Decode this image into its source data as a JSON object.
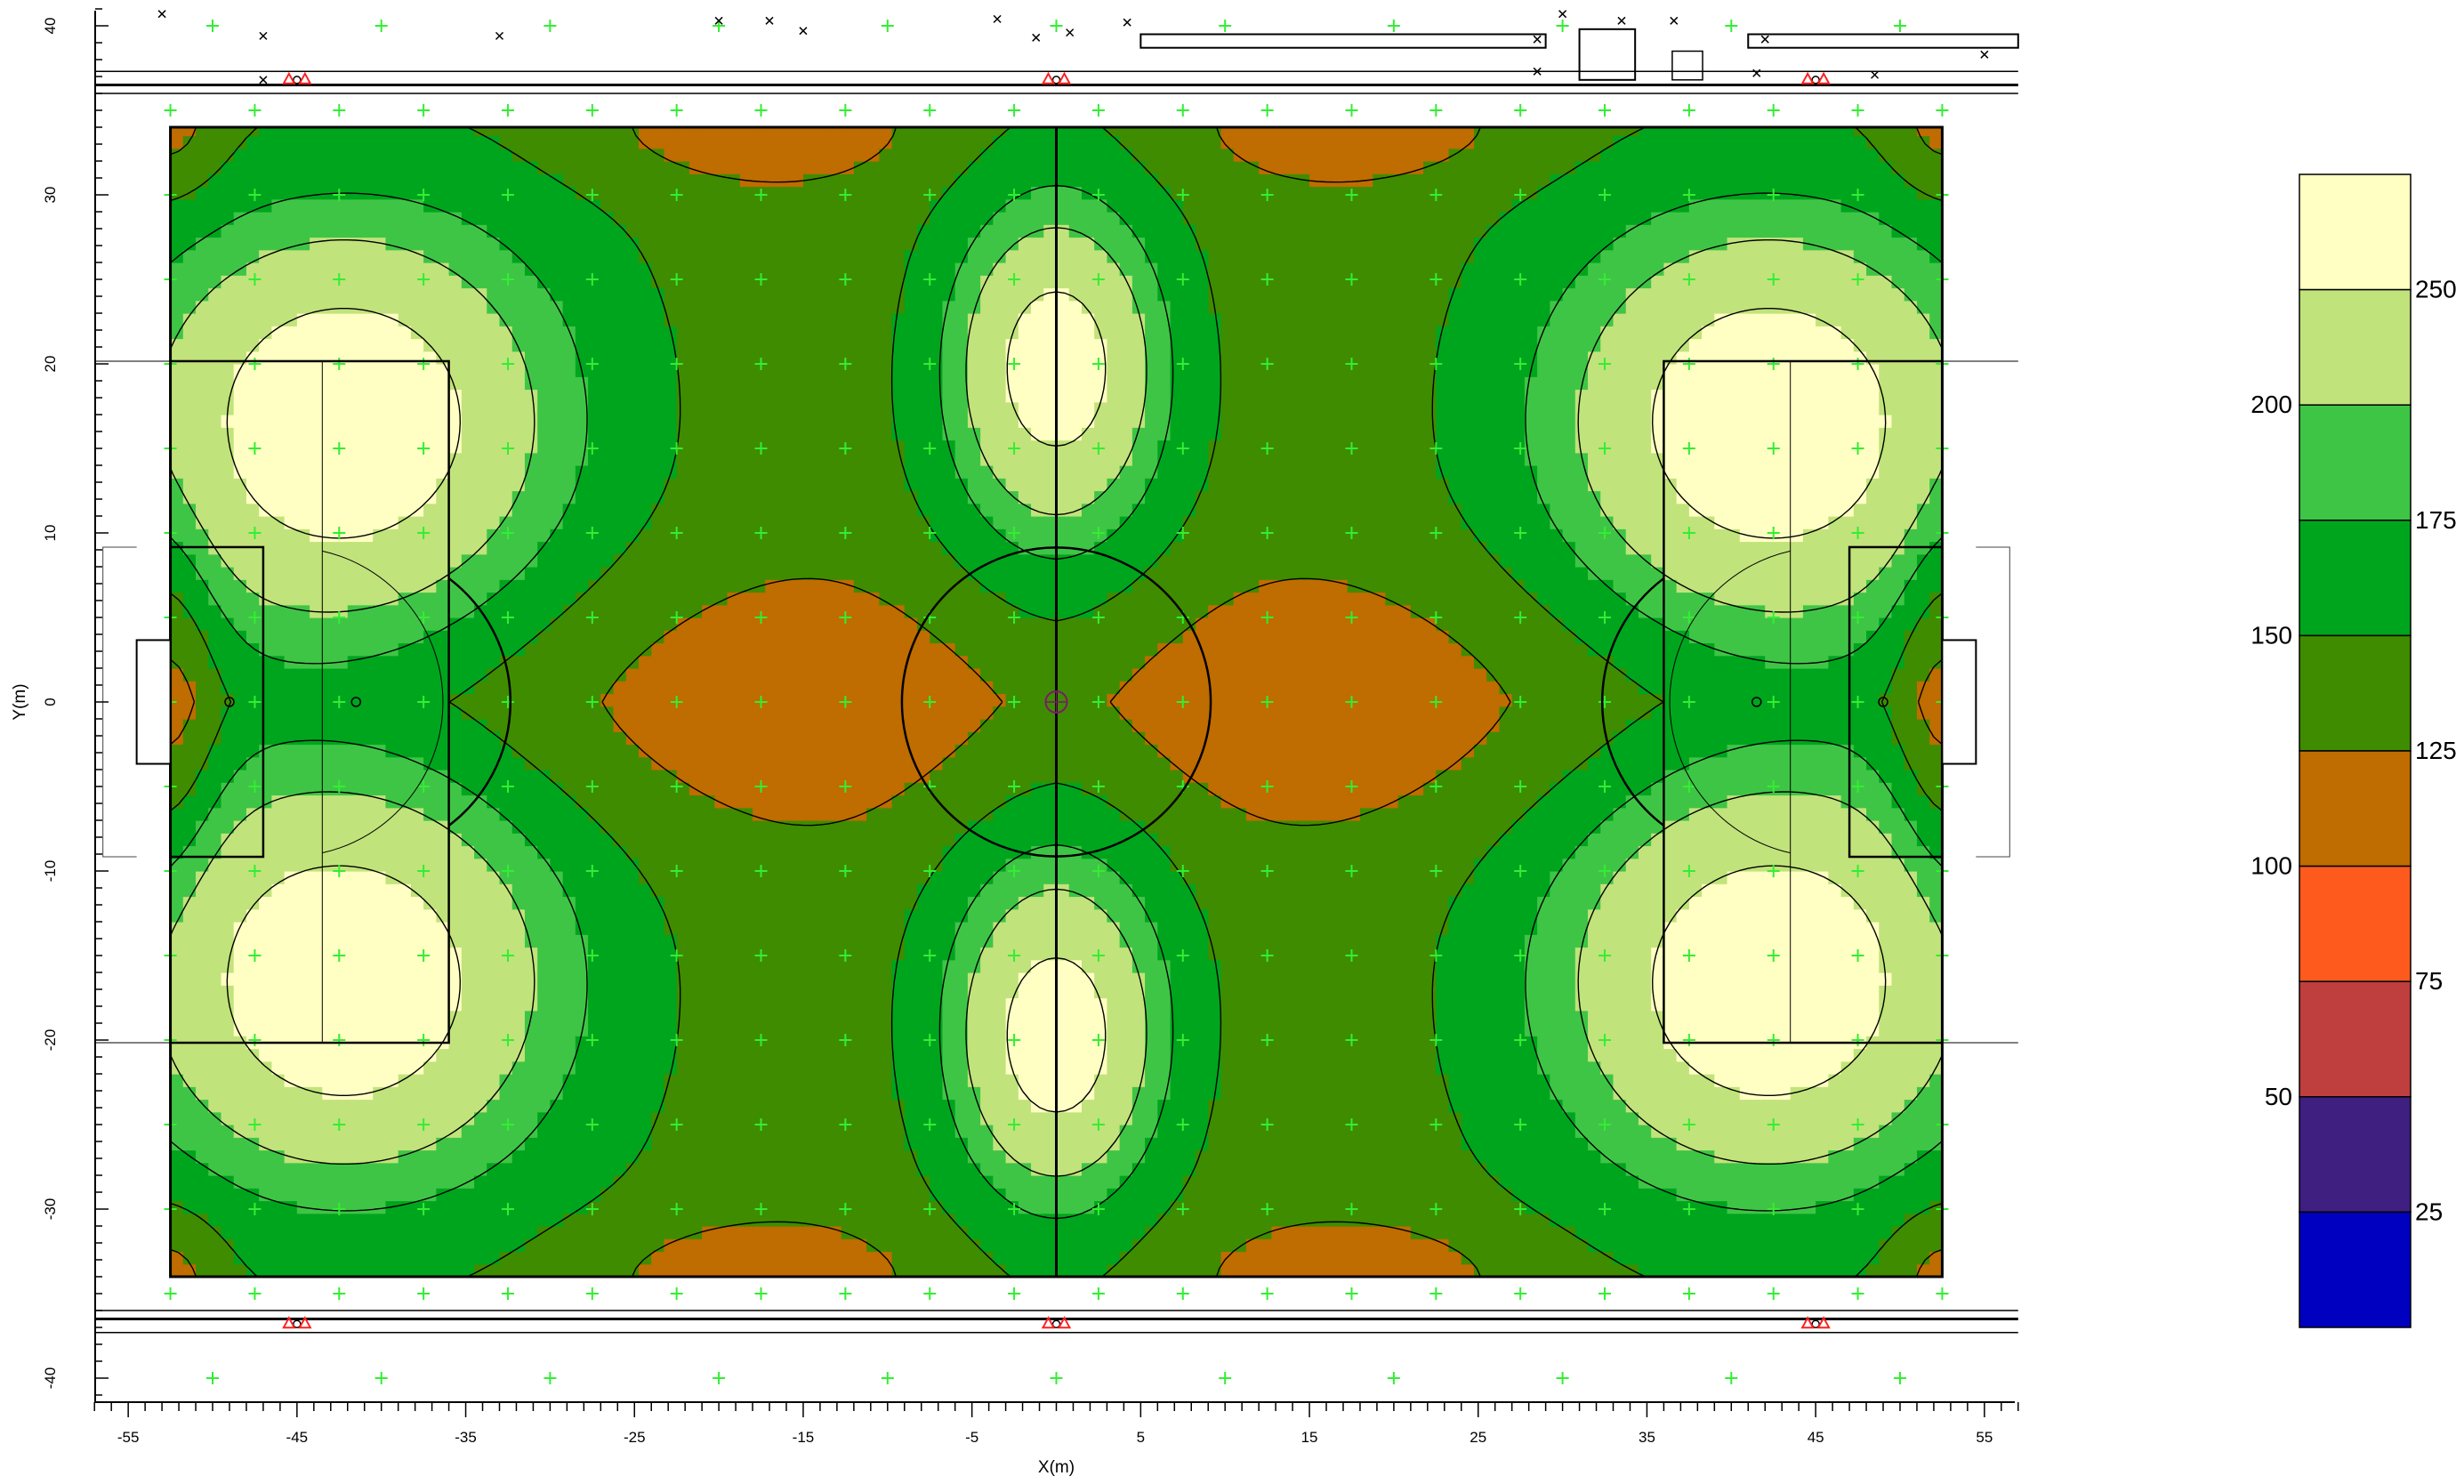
{
  "chart_data": {
    "type": "heatmap",
    "subtype": "filled-contour (illuminance isolux map of a football pitch)",
    "xlabel": "X(m)",
    "ylabel": "Y(m)",
    "xlim": [
      -57,
      57
    ],
    "ylim": [
      -41,
      41
    ],
    "x_tick_labels": [
      "-55",
      "-45",
      "-35",
      "-25",
      "-15",
      "-5",
      "5",
      "15",
      "25",
      "35",
      "45",
      "55"
    ],
    "x_tick_values": [
      -55,
      -45,
      -35,
      -25,
      -15,
      -5,
      5,
      15,
      25,
      35,
      45,
      55
    ],
    "y_tick_labels": [
      "-40",
      "-30",
      "-20",
      "-10",
      "0",
      "10",
      "20",
      "30",
      "40"
    ],
    "y_tick_values": [
      -40,
      -30,
      -20,
      -10,
      0,
      10,
      20,
      30,
      40
    ],
    "legend_position": "right",
    "legend_bands": [
      {
        "low": 0,
        "high": 25,
        "color": "#0000c0"
      },
      {
        "low": 25,
        "high": 50,
        "color": "#3f1f7f"
      },
      {
        "low": 50,
        "high": 75,
        "color": "#bf3f3f"
      },
      {
        "low": 75,
        "high": 100,
        "color": "#ff5a1e"
      },
      {
        "low": 100,
        "high": 125,
        "color": "#bf6c00"
      },
      {
        "low": 125,
        "high": 150,
        "color": "#3f8c00"
      },
      {
        "low": 150,
        "high": 175,
        "color": "#00a51e"
      },
      {
        "low": 175,
        "high": 200,
        "color": "#3fc546"
      },
      {
        "low": 200,
        "high": 250,
        "color": "#c1e37b"
      },
      {
        "low": 250,
        "high": 275,
        "color": "#ffffc4"
      }
    ],
    "legend_labels_right": [
      "250",
      "175",
      "125",
      "75",
      "25"
    ],
    "legend_labels_left": [
      "200",
      "150",
      "100",
      "50"
    ],
    "pitch": {
      "x": [
        -52.5,
        52.5
      ],
      "y": [
        -34,
        34
      ],
      "center_circle_radius": 9.15
    },
    "contour_levels": [
      100,
      125,
      150,
      175,
      200,
      250
    ],
    "light_poles": [
      {
        "x": -45,
        "y": 36.8
      },
      {
        "x": 0,
        "y": 36.8
      },
      {
        "x": 45,
        "y": 36.8
      },
      {
        "x": -45,
        "y": -36.8
      },
      {
        "x": 0,
        "y": -36.8
      },
      {
        "x": 45,
        "y": -36.8
      }
    ],
    "measurement_grid_note": "green + markers on a 5 m grid"
  }
}
